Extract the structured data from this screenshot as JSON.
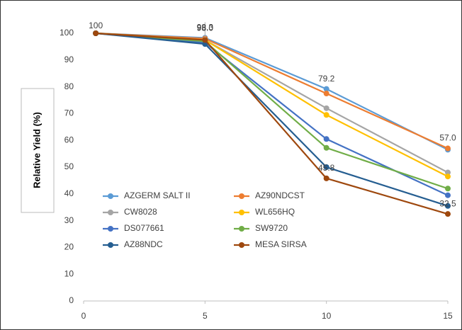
{
  "chart_data": {
    "type": "line",
    "ylabel": "Relative Yield (%)",
    "x": [
      0.5,
      5,
      10,
      15
    ],
    "xlim": [
      0,
      15
    ],
    "xticks": [
      0,
      5,
      10,
      15
    ],
    "ylim": [
      0,
      100
    ],
    "yticks": [
      0,
      10,
      20,
      30,
      40,
      50,
      60,
      70,
      80,
      90,
      100
    ],
    "legend": "lower-left",
    "series": [
      {
        "name": "AZGERM SALT II",
        "color": "#5b9bd5",
        "values": [
          100,
          98.3,
          79.2,
          56.5
        ],
        "value_labels": [
          null,
          "98.3",
          "79.2",
          null
        ]
      },
      {
        "name": "AZ90NDCST",
        "color": "#ed7d31",
        "values": [
          100,
          98.0,
          77.5,
          57.0
        ],
        "value_labels": [
          "100",
          "98.0",
          null,
          "57.0"
        ]
      },
      {
        "name": "CW8028",
        "color": "#a5a5a5",
        "values": [
          100,
          97.5,
          72.0,
          48.0
        ]
      },
      {
        "name": "WL656HQ",
        "color": "#ffc000",
        "values": [
          100,
          97.5,
          69.5,
          46.5
        ]
      },
      {
        "name": "DS077661",
        "color": "#4472c4",
        "values": [
          100,
          96.5,
          60.5,
          39.5
        ]
      },
      {
        "name": "SW9720",
        "color": "#70ad47",
        "values": [
          100,
          97.0,
          57.2,
          42.0
        ]
      },
      {
        "name": "AZ88NDC",
        "color": "#255e91",
        "values": [
          100,
          96.0,
          50.0,
          35.5
        ]
      },
      {
        "name": "MESA SIRSA",
        "color": "#9e480e",
        "values": [
          100,
          97.5,
          45.8,
          32.5
        ],
        "value_labels": [
          null,
          null,
          "45.8",
          "32.5"
        ]
      }
    ]
  }
}
